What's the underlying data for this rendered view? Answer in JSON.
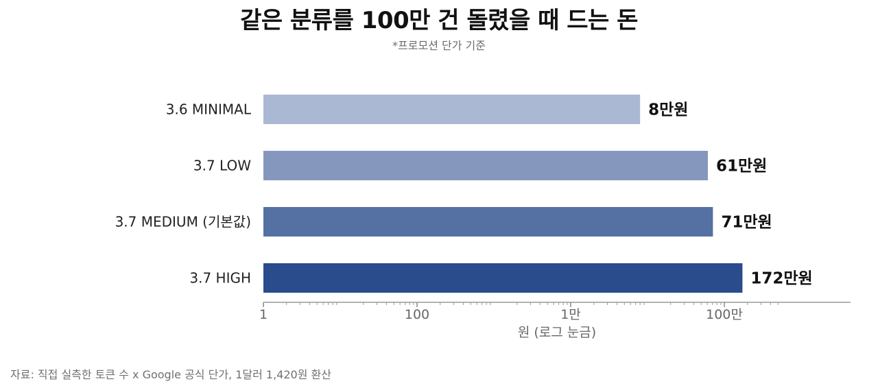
{
  "title": "같은 분류를 100만 건 돌렸을 때 드는 돈",
  "subtitle": "*프로모션 단가 기준",
  "source": "자료: 직접 실측한 토큰 수 x Google 공식 단가, 1달러 1,420원 환산",
  "chart_data": {
    "type": "bar",
    "orientation": "horizontal",
    "x_scale": "log",
    "xlabel": "원 (로그 눈금)",
    "xlim": [
      1,
      5000000
    ],
    "x_ticks": [
      {
        "value": 1,
        "label": "1"
      },
      {
        "value": 100,
        "label": "100"
      },
      {
        "value": 10000,
        "label": "1만"
      },
      {
        "value": 1000000,
        "label": "100만"
      }
    ],
    "categories": [
      "3.6 MINIMAL",
      "3.7 LOW",
      "3.7 MEDIUM (기본값)",
      "3.7 HIGH"
    ],
    "values": [
      80000,
      610000,
      710000,
      1720000
    ],
    "value_labels": [
      "8만원",
      "61만원",
      "71만원",
      "172만원"
    ],
    "colors": [
      "#aab8d3",
      "#8597bc",
      "#5570a3",
      "#2a4b8c"
    ],
    "grid": false
  }
}
